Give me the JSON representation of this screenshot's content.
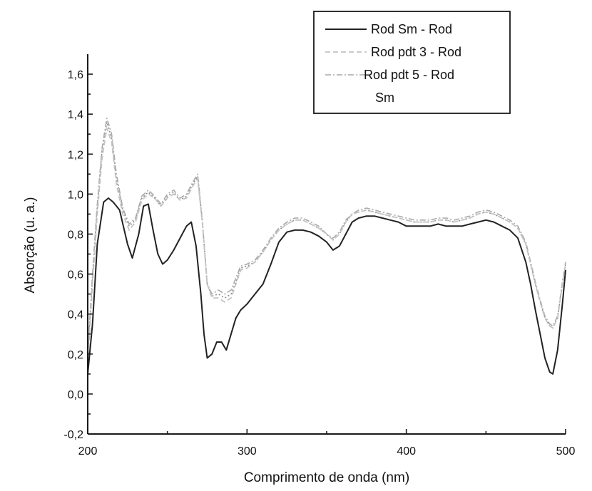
{
  "chart_data": {
    "type": "line",
    "title": "",
    "xlabel": "Comprimento de onda (nm)",
    "ylabel": "Absorção (u. a.)",
    "xlim": [
      200,
      500
    ],
    "ylim": [
      -0.2,
      1.7
    ],
    "x_ticks": [
      "200",
      "300",
      "400",
      "500"
    ],
    "y_ticks": [
      "-0,2",
      "0,0",
      "0,2",
      "0,4",
      "0,6",
      "0,8",
      "1,0",
      "1,2",
      "1,4",
      "1,6"
    ],
    "x_tick_values": [
      200,
      300,
      400,
      500
    ],
    "y_tick_values": [
      -0.2,
      0.0,
      0.2,
      0.4,
      0.6,
      0.8,
      1.0,
      1.2,
      1.4,
      1.6
    ],
    "grid": false,
    "legend_position": "top-right",
    "legend": [
      "Rod Sm - Rod",
      "Rod pdt 3 - Rod",
      "Rod pdt 5 - Rod",
      "Sm"
    ],
    "series": [
      {
        "name": "Rod Sm - Rod",
        "color": "#222222",
        "style": "solid",
        "x": [
          200,
          203,
          206,
          210,
          213,
          216,
          220,
          225,
          228,
          232,
          235,
          238,
          241,
          244,
          247,
          250,
          254,
          258,
          262,
          265,
          268,
          271,
          273,
          275,
          278,
          281,
          284,
          287,
          290,
          293,
          296,
          300,
          305,
          310,
          315,
          320,
          325,
          330,
          335,
          340,
          345,
          350,
          354,
          358,
          362,
          366,
          370,
          375,
          380,
          385,
          390,
          395,
          400,
          405,
          410,
          415,
          420,
          425,
          430,
          435,
          440,
          445,
          450,
          455,
          460,
          465,
          470,
          475,
          478,
          481,
          484,
          487,
          490,
          492,
          495,
          498,
          500
        ],
        "y": [
          0.1,
          0.35,
          0.75,
          0.96,
          0.98,
          0.96,
          0.92,
          0.75,
          0.68,
          0.8,
          0.94,
          0.95,
          0.82,
          0.7,
          0.65,
          0.67,
          0.72,
          0.78,
          0.84,
          0.86,
          0.74,
          0.5,
          0.3,
          0.18,
          0.2,
          0.26,
          0.26,
          0.22,
          0.3,
          0.38,
          0.42,
          0.45,
          0.5,
          0.55,
          0.65,
          0.76,
          0.81,
          0.82,
          0.82,
          0.81,
          0.79,
          0.76,
          0.72,
          0.74,
          0.8,
          0.86,
          0.88,
          0.89,
          0.89,
          0.88,
          0.87,
          0.86,
          0.84,
          0.84,
          0.84,
          0.84,
          0.85,
          0.84,
          0.84,
          0.84,
          0.85,
          0.86,
          0.87,
          0.86,
          0.84,
          0.82,
          0.78,
          0.66,
          0.55,
          0.42,
          0.3,
          0.18,
          0.11,
          0.1,
          0.22,
          0.45,
          0.62
        ]
      },
      {
        "name": "Rod pdt 3 - Rod",
        "color": "#c4c4c4",
        "style": "dashed",
        "x": [
          200,
          203,
          206,
          209,
          212,
          215,
          218,
          222,
          226,
          230,
          234,
          238,
          242,
          246,
          250,
          254,
          258,
          262,
          266,
          269,
          272,
          275,
          278,
          282,
          286,
          290,
          293,
          296,
          300,
          305,
          310,
          315,
          320,
          325,
          330,
          335,
          340,
          345,
          350,
          354,
          358,
          362,
          366,
          370,
          375,
          380,
          385,
          390,
          395,
          400,
          405,
          410,
          415,
          420,
          425,
          430,
          435,
          440,
          445,
          450,
          455,
          460,
          465,
          470,
          475,
          478,
          481,
          484,
          487,
          490,
          492,
          495,
          498,
          500
        ],
        "y": [
          0.15,
          0.55,
          0.9,
          1.18,
          1.33,
          1.26,
          1.05,
          0.9,
          0.82,
          0.86,
          0.97,
          1.0,
          0.98,
          0.94,
          0.98,
          1.0,
          0.97,
          0.98,
          1.04,
          1.08,
          0.85,
          0.55,
          0.48,
          0.48,
          0.46,
          0.48,
          0.55,
          0.62,
          0.63,
          0.66,
          0.71,
          0.77,
          0.82,
          0.85,
          0.87,
          0.87,
          0.85,
          0.83,
          0.8,
          0.77,
          0.8,
          0.86,
          0.9,
          0.91,
          0.92,
          0.91,
          0.9,
          0.89,
          0.88,
          0.87,
          0.86,
          0.86,
          0.86,
          0.87,
          0.87,
          0.86,
          0.87,
          0.88,
          0.9,
          0.91,
          0.9,
          0.88,
          0.86,
          0.83,
          0.75,
          0.65,
          0.55,
          0.46,
          0.38,
          0.34,
          0.33,
          0.38,
          0.55,
          0.65
        ]
      },
      {
        "name": "Rod pdt 5 - Rod",
        "color": "#a9a9a9",
        "style": "dashdot",
        "x": [
          200,
          203,
          206,
          209,
          212,
          215,
          218,
          222,
          226,
          230,
          234,
          238,
          242,
          246,
          250,
          254,
          258,
          262,
          266,
          269,
          272,
          275,
          278,
          282,
          286,
          290,
          293,
          296,
          300,
          305,
          310,
          315,
          320,
          325,
          330,
          335,
          340,
          345,
          350,
          354,
          358,
          362,
          366,
          370,
          375,
          380,
          385,
          390,
          395,
          400,
          405,
          410,
          415,
          420,
          425,
          430,
          435,
          440,
          445,
          450,
          455,
          460,
          465,
          470,
          475,
          478,
          481,
          484,
          487,
          490,
          492,
          495,
          498,
          500
        ],
        "y": [
          0.2,
          0.6,
          0.95,
          1.23,
          1.38,
          1.3,
          1.1,
          0.93,
          0.85,
          0.88,
          0.99,
          1.02,
          0.99,
          0.95,
          1.0,
          1.02,
          0.98,
          1.0,
          1.06,
          1.1,
          0.86,
          0.55,
          0.5,
          0.52,
          0.5,
          0.52,
          0.58,
          0.64,
          0.65,
          0.67,
          0.72,
          0.78,
          0.83,
          0.86,
          0.88,
          0.88,
          0.86,
          0.84,
          0.8,
          0.78,
          0.81,
          0.87,
          0.9,
          0.92,
          0.93,
          0.92,
          0.91,
          0.9,
          0.89,
          0.88,
          0.87,
          0.87,
          0.87,
          0.88,
          0.88,
          0.87,
          0.88,
          0.89,
          0.91,
          0.92,
          0.91,
          0.89,
          0.87,
          0.84,
          0.76,
          0.66,
          0.56,
          0.47,
          0.39,
          0.35,
          0.34,
          0.39,
          0.56,
          0.66
        ]
      },
      {
        "name": "Sm",
        "color": "#8f8f8f",
        "style": "dotted",
        "x": [
          200,
          203,
          206,
          209,
          212,
          215,
          218,
          222,
          226,
          230,
          234,
          238,
          242,
          246,
          250,
          254,
          258,
          262,
          266,
          269,
          272,
          275,
          278,
          282,
          286,
          290,
          293,
          296,
          300,
          305,
          310,
          315,
          320,
          325,
          330,
          335,
          340,
          345,
          350,
          354,
          358,
          362,
          366,
          370,
          375,
          380,
          385,
          390,
          395,
          400,
          405,
          410,
          415,
          420,
          425,
          430,
          435,
          440,
          445,
          450,
          455,
          460,
          465,
          470,
          475,
          478,
          481,
          484,
          487,
          490,
          492,
          495,
          498,
          500
        ],
        "y": [
          0.18,
          0.58,
          0.93,
          1.22,
          1.36,
          1.28,
          1.08,
          0.92,
          0.84,
          0.87,
          0.98,
          1.01,
          0.98,
          0.94,
          0.99,
          1.01,
          0.97,
          0.99,
          1.05,
          1.09,
          0.86,
          0.55,
          0.49,
          0.5,
          0.48,
          0.5,
          0.56,
          0.63,
          0.64,
          0.66,
          0.71,
          0.77,
          0.82,
          0.85,
          0.87,
          0.87,
          0.85,
          0.83,
          0.8,
          0.77,
          0.8,
          0.86,
          0.9,
          0.91,
          0.92,
          0.91,
          0.9,
          0.89,
          0.88,
          0.87,
          0.86,
          0.86,
          0.86,
          0.87,
          0.87,
          0.86,
          0.87,
          0.88,
          0.9,
          0.91,
          0.9,
          0.88,
          0.86,
          0.83,
          0.75,
          0.65,
          0.55,
          0.46,
          0.38,
          0.34,
          0.33,
          0.38,
          0.55,
          0.65
        ]
      }
    ]
  }
}
